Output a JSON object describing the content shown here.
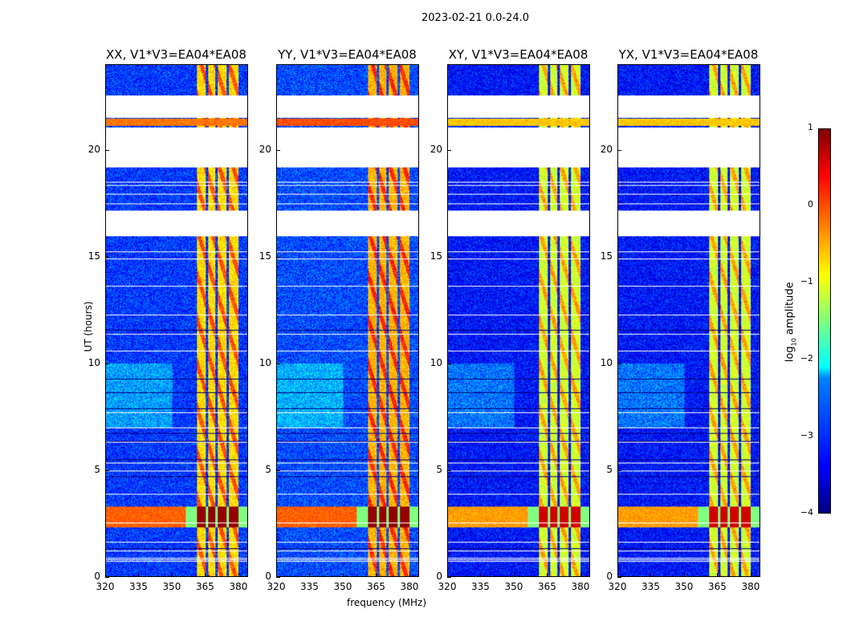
{
  "figure_title": "2023-02-21 0.0-24.0",
  "chart_data": {
    "type": "heatmap",
    "title": "2023-02-21 0.0-24.0",
    "xlabel": "frequency (MHz)",
    "ylabel": "UT (hours)",
    "xlim": [
      320,
      384
    ],
    "ylim": [
      0,
      24
    ],
    "xticks": [
      "320",
      "335",
      "350",
      "365",
      "380"
    ],
    "yticks": [
      "0",
      "5",
      "10",
      "15",
      "20"
    ],
    "colorbar": {
      "label_prefix": "log",
      "label_sub": "10",
      "label_suffix": " amplitude",
      "range": [
        -4,
        1
      ],
      "ticks": [
        "1",
        "0",
        "−1",
        "−2",
        "−3",
        "−4"
      ],
      "colormap": "jet"
    },
    "panels": [
      {
        "title": "XX, V1*V3=EA04*EA08",
        "background": -3.1,
        "band_level": -0.7,
        "rfi_level": 0.9
      },
      {
        "title": "YY, V1*V3=EA04*EA08",
        "background": -3.0,
        "band_level": -0.5,
        "rfi_level": 0.9
      },
      {
        "title": "XY, V1*V3=EA04*EA08",
        "background": -3.3,
        "band_level": -1.1,
        "rfi_level": 0.6
      },
      {
        "title": "YX, V1*V3=EA04*EA08",
        "background": -3.3,
        "band_level": -1.1,
        "rfi_level": 0.6
      }
    ],
    "band_mhz": [
      361,
      380
    ],
    "band_gaps_mhz": [
      365.5,
      370,
      375
    ],
    "flagged_hours": [
      [
        21.55,
        22.6
      ],
      [
        19.2,
        21.1
      ],
      [
        16.0,
        17.2
      ]
    ],
    "strong_rfi_hours": [
      2.3,
      3.3
    ],
    "bright_rows_hours": [
      21.15,
      21.5
    ]
  }
}
